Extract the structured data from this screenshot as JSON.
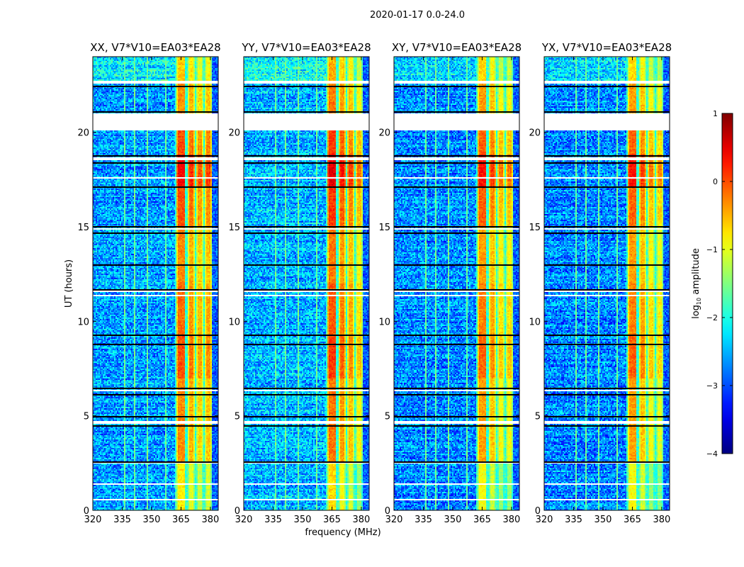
{
  "chart_data": {
    "type": "heatmap",
    "title": "2020-01-17 0.0-24.0",
    "xlabel": "frequency (MHz)",
    "ylabel": "UT (hours)",
    "xlim": [
      320,
      384
    ],
    "ylim": [
      0,
      24
    ],
    "xticks": [
      320,
      335,
      350,
      365,
      380
    ],
    "yticks": [
      0,
      5,
      10,
      15,
      20
    ],
    "panels": [
      {
        "title": "XX, V7*V10=EA03*EA28",
        "window_levels": [
          -0.3,
          -0.5,
          -0.7,
          -0.6
        ],
        "background": -2.6
      },
      {
        "title": "YY, V7*V10=EA03*EA28",
        "window_levels": [
          -0.2,
          -0.4,
          -0.6,
          -0.9
        ],
        "background": -2.5
      },
      {
        "title": "XY, V7*V10=EA03*EA28",
        "window_levels": [
          -0.4,
          -0.6,
          -0.9,
          -0.9
        ],
        "background": -2.7
      },
      {
        "title": "YX, V7*V10=EA03*EA28",
        "window_levels": [
          -0.4,
          -0.6,
          -0.9,
          -1.0
        ],
        "background": -2.7
      }
    ],
    "spectral_windows_mhz": [
      [
        362.5,
        367.3
      ],
      [
        368.3,
        372.2
      ],
      [
        373.0,
        376.6
      ],
      [
        377.4,
        380.6
      ]
    ],
    "rfi_channels_mhz": [
      336.5,
      341.0,
      347.5,
      357.0
    ],
    "time_profile": [
      {
        "range": [
          0,
          2.5
        ],
        "offset": -0.5
      },
      {
        "range": [
          7.0,
          9.3
        ],
        "offset": 0.3
      },
      {
        "range": [
          9.3,
          12.0
        ],
        "offset": 0.15
      },
      {
        "range": [
          15.0,
          17.1
        ],
        "offset": 0.3
      },
      {
        "range": [
          17.1,
          18.8
        ],
        "offset": 0.7
      },
      {
        "range": [
          18.8,
          20.1
        ],
        "offset": 0.3
      },
      {
        "range": [
          22.7,
          24
        ],
        "offset": -0.3
      }
    ],
    "flagged_time_ranges_h": [
      [
        20.1,
        21.0
      ],
      [
        22.55,
        22.7
      ],
      [
        18.55,
        18.65
      ],
      [
        17.55,
        17.6
      ],
      [
        17.3,
        17.35
      ],
      [
        14.85,
        14.9
      ],
      [
        11.55,
        11.65
      ],
      [
        11.35,
        11.4
      ],
      [
        6.3,
        6.4
      ],
      [
        4.6,
        4.7
      ],
      [
        4.4,
        4.45
      ],
      [
        2.45,
        2.55
      ],
      [
        1.35,
        1.45
      ],
      [
        0.55,
        0.6
      ],
      [
        0.2,
        0.25
      ],
      [
        13.4,
        13.45
      ],
      [
        8.0,
        8.05
      ],
      [
        7.4,
        7.45
      ]
    ],
    "dark_time_lines_h": [
      22.45,
      21.1,
      18.8,
      18.4,
      17.15,
      15.05,
      14.7,
      13.0,
      11.7,
      9.3,
      8.8,
      6.5,
      6.15,
      5.0,
      4.5,
      2.6
    ],
    "colorbar": {
      "label": "log10 amplitude",
      "label_base": "log",
      "label_sub": "10",
      "label_rest": " amplitude",
      "range": [
        -4,
        1
      ],
      "ticks": [
        1,
        0,
        -1,
        -2,
        -3,
        -4
      ],
      "tick_labels": [
        "1",
        "0",
        "−1",
        "−2",
        "−3",
        "−4"
      ],
      "colormap": "jet"
    }
  }
}
